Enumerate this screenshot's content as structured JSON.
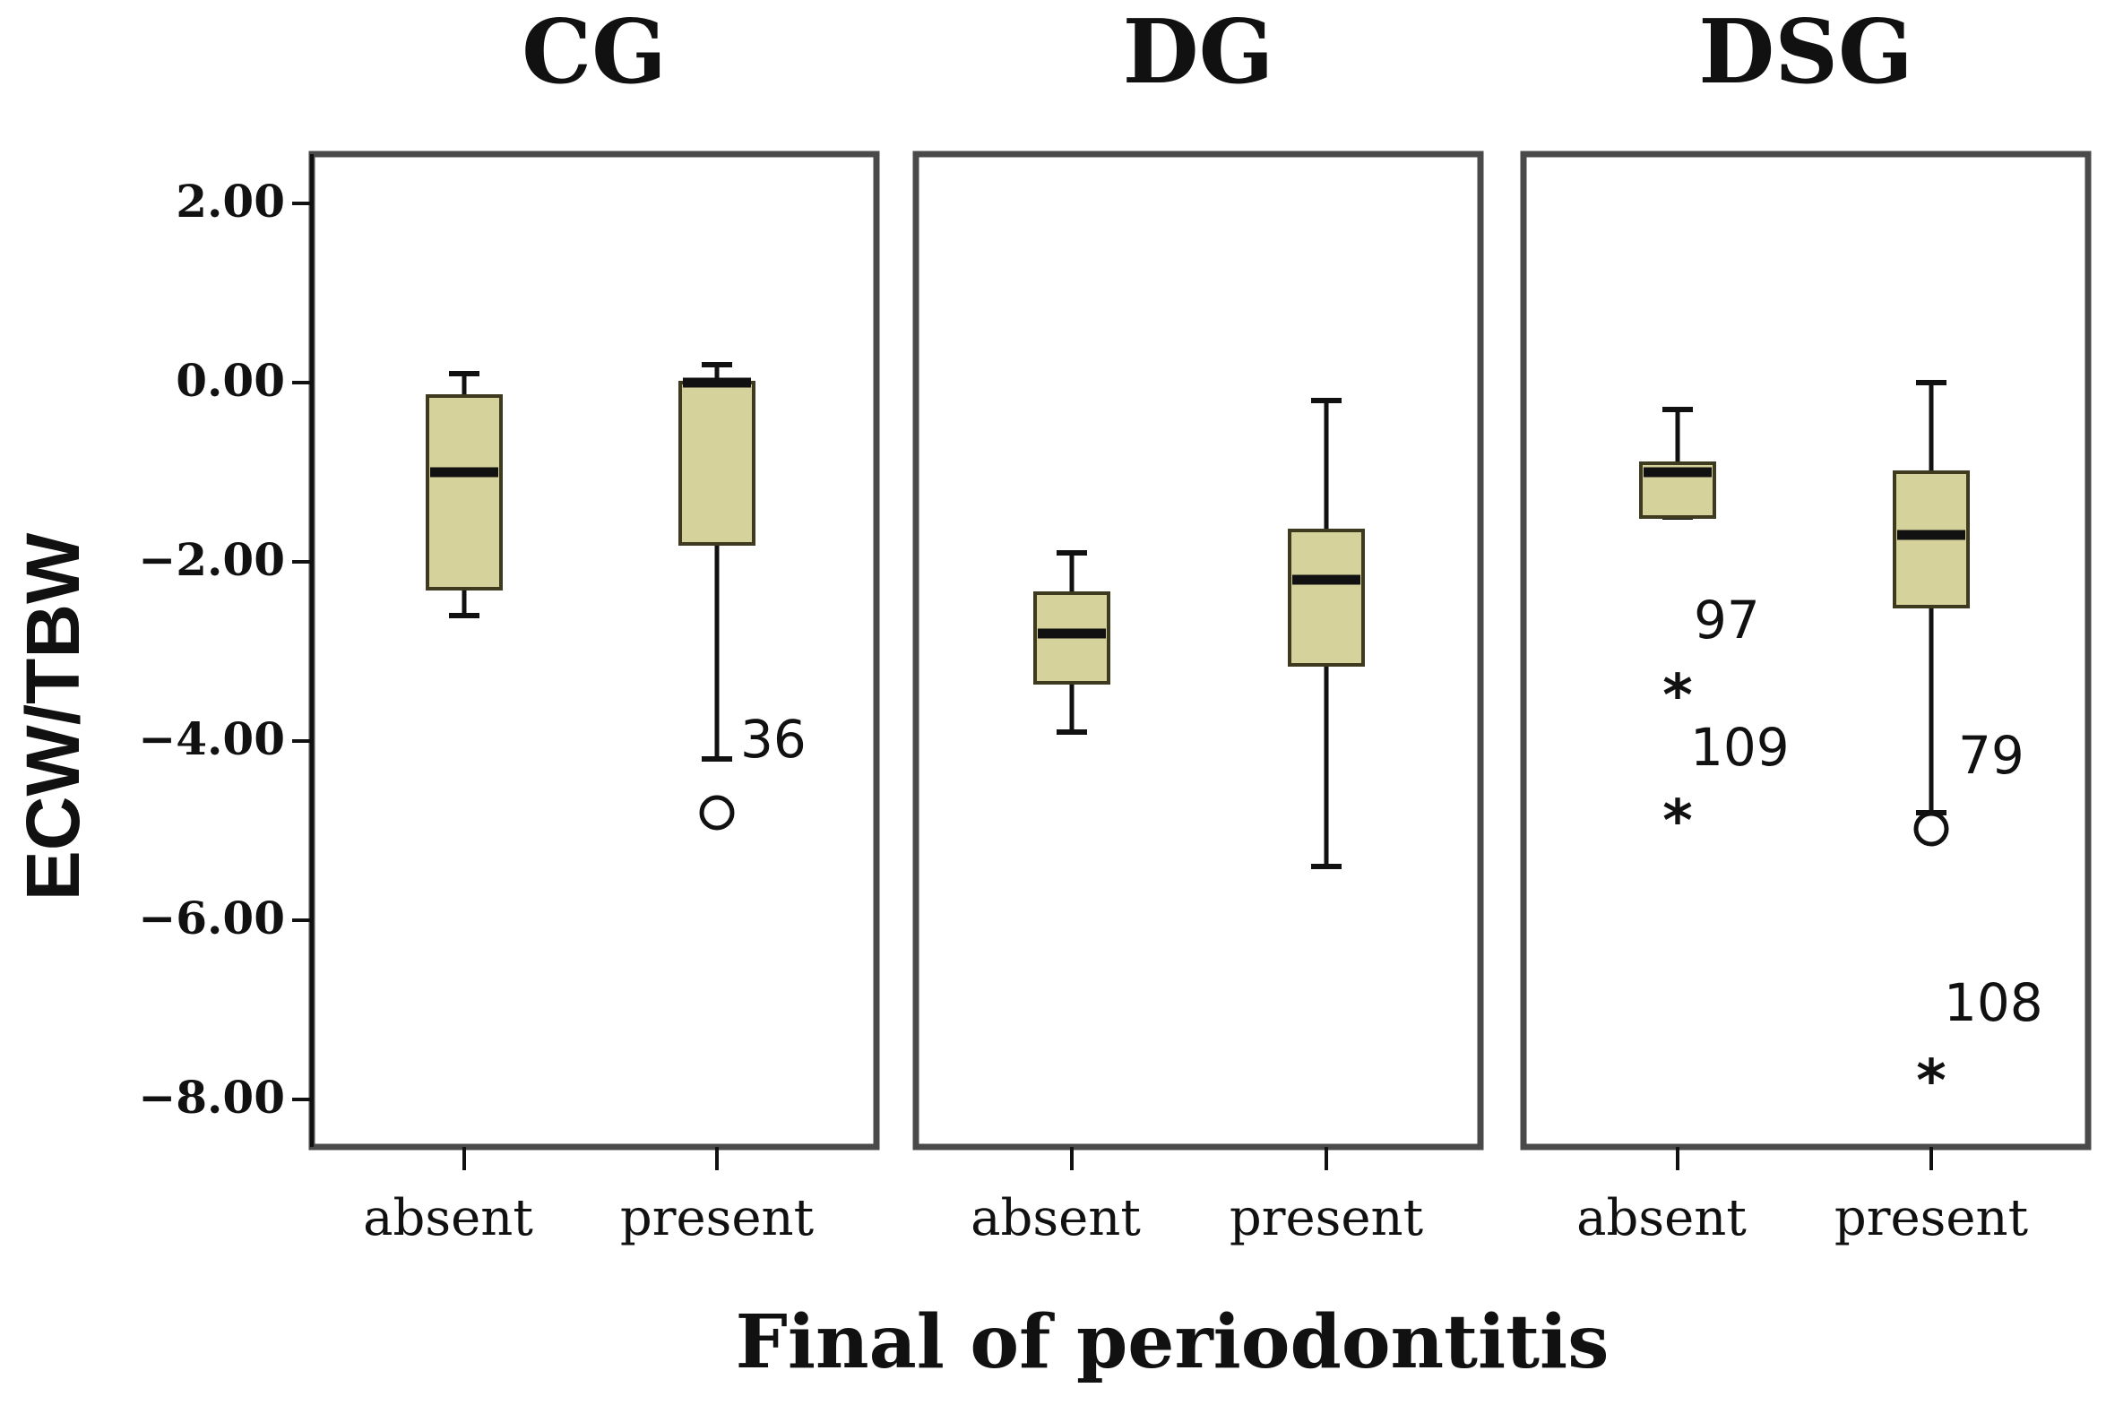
{
  "chart_data": {
    "type": "boxplot",
    "title": "",
    "ylabel": "ECW/TBW",
    "xlabel": "Final of periodontitis",
    "ylim": [
      -8.5,
      2.3
    ],
    "yticks": [
      2.0,
      0.0,
      -2.0,
      -4.0,
      -6.0,
      -8.0
    ],
    "ytick_labels": [
      "2.00",
      "0.00",
      "−2.00",
      "−4.00",
      "−6.00",
      "−8.00"
    ],
    "categories": [
      "absent",
      "present"
    ],
    "colors": {
      "box_fill": "#d6d29c",
      "box_stroke": "#3e3a1f",
      "frame": "#4a4a4a",
      "text": "#111111"
    },
    "panels": [
      {
        "name": "CG",
        "groups": [
          {
            "category": "absent",
            "whisker_low": -2.6,
            "q1": -2.3,
            "median": -1.0,
            "q3": -0.15,
            "whisker_high": 0.1,
            "outliers": []
          },
          {
            "category": "present",
            "whisker_low": -4.2,
            "q1": -1.8,
            "median": 0.0,
            "q3": 0.0,
            "whisker_high": 0.2,
            "outliers": [
              {
                "value": -4.8,
                "marker": "circle",
                "label": "36"
              }
            ]
          }
        ]
      },
      {
        "name": "DG",
        "groups": [
          {
            "category": "absent",
            "whisker_low": -3.9,
            "q1": -3.35,
            "median": -2.8,
            "q3": -2.35,
            "whisker_high": -1.9,
            "outliers": []
          },
          {
            "category": "present",
            "whisker_low": -5.4,
            "q1": -3.15,
            "median": -2.2,
            "q3": -1.65,
            "whisker_high": -0.2,
            "outliers": []
          }
        ]
      },
      {
        "name": "DSG",
        "groups": [
          {
            "category": "absent",
            "whisker_low": -1.5,
            "q1": -1.5,
            "median": -1.0,
            "q3": -0.9,
            "whisker_high": -0.3,
            "outliers": [
              {
                "value": -3.4,
                "marker": "star",
                "label": "97"
              },
              {
                "value": -4.8,
                "marker": "star",
                "label": "109"
              }
            ]
          },
          {
            "category": "present",
            "whisker_low": -4.8,
            "q1": -2.5,
            "median": -1.7,
            "q3": -1.0,
            "whisker_high": 0.0,
            "outliers": [
              {
                "value": -4.9,
                "marker": "circle",
                "label": "79"
              },
              {
                "value": -7.7,
                "marker": "star",
                "label": "108"
              }
            ]
          }
        ]
      }
    ]
  }
}
